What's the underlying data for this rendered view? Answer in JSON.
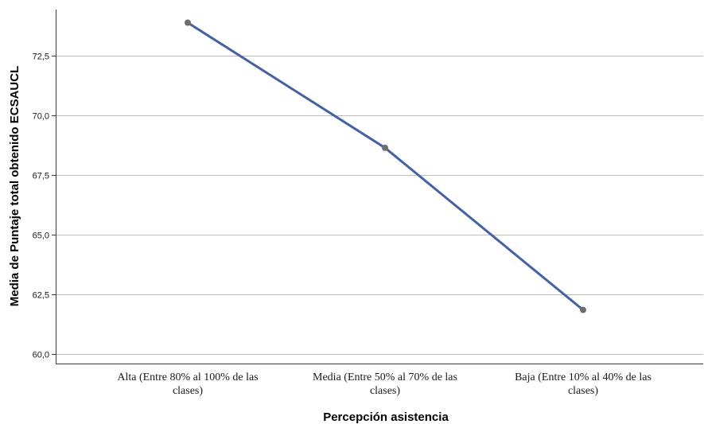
{
  "chart_data": {
    "type": "line",
    "title": "",
    "xlabel": "Percepción asistencia",
    "ylabel": "Media de Puntaje total obtenido ECSAUCL",
    "categories": [
      [
        "Alta (Entre 80% al 100% de las",
        "clases)"
      ],
      [
        "Media (Entre 50% al 70% de las",
        "clases)"
      ],
      [
        "Baja (Entre 10% al 40% de las",
        "clases)"
      ]
    ],
    "series": [
      {
        "values": [
          73.9,
          68.65,
          61.85
        ]
      }
    ],
    "yticks": [
      "60,0",
      "62,5",
      "65,0",
      "67,5",
      "70,0",
      "72,5"
    ],
    "ytick_values": [
      60.0,
      62.5,
      65.0,
      67.5,
      70.0,
      72.5
    ],
    "ylim": [
      59.6,
      74.45
    ],
    "grid": true,
    "line_color": "#4361a8",
    "marker_color": "#6e6e6e",
    "grid_color": "#bdbdbd",
    "axis_color": "#3a3a3a"
  }
}
